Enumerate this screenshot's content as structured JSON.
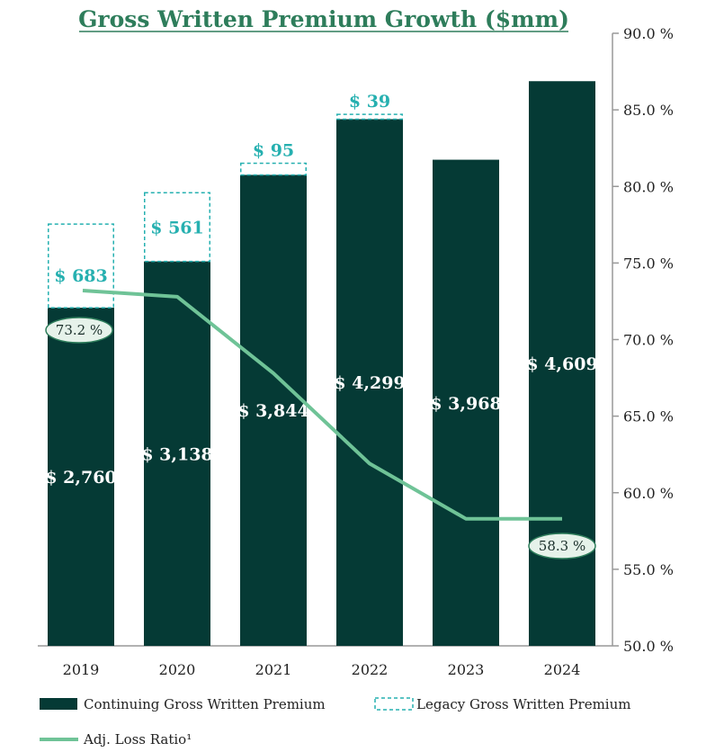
{
  "colors": {
    "continuing": "#053a35",
    "legacy_border": "#26b0b0",
    "legacy_text": "#26b0b0",
    "line": "#6fc397",
    "ratio_badge_fill": "#e6f2ea",
    "ratio_badge_stroke": "#2e7d5b",
    "title": "#2e7d5b"
  },
  "chart_data": {
    "type": "bar",
    "title": "Gross Written Premium Growth ($mm)",
    "categories": [
      "2019",
      "2020",
      "2021",
      "2022",
      "2023",
      "2024"
    ],
    "series": [
      {
        "name": "Continuing Gross Written Premium",
        "values": [
          2760,
          3138,
          3844,
          4299,
          3968,
          4609
        ],
        "labels": [
          "$ 2,760",
          "$ 3,138",
          "$ 3,844",
          "$ 4,299",
          "$ 3,968",
          "$ 4,609"
        ]
      },
      {
        "name": "Legacy Gross Written Premium",
        "values": [
          683,
          561,
          95,
          39,
          null,
          null
        ],
        "labels": [
          "$ 683",
          "$ 561",
          "$ 95",
          "$ 39",
          "",
          ""
        ]
      },
      {
        "name": "Adj. Loss Ratio¹",
        "type": "line",
        "axis": "right",
        "values": [
          73.2,
          72.8,
          67.8,
          61.9,
          58.3,
          58.3
        ],
        "labels": [
          "73.2 %",
          "",
          "",
          "",
          "",
          "58.3 %"
        ]
      }
    ],
    "left_ylim": [
      0,
      5000
    ],
    "right_ylim": [
      50,
      90
    ],
    "right_ticks": [
      90,
      85,
      80,
      75,
      70,
      65,
      60,
      55,
      50
    ],
    "right_tick_labels": [
      "90.0 %",
      "85.0 %",
      "80.0 %",
      "75.0 %",
      "70.0 %",
      "65.0 %",
      "60.0 %",
      "55.0 %",
      "50.0 %"
    ],
    "grid": false,
    "legend": "bottom"
  }
}
